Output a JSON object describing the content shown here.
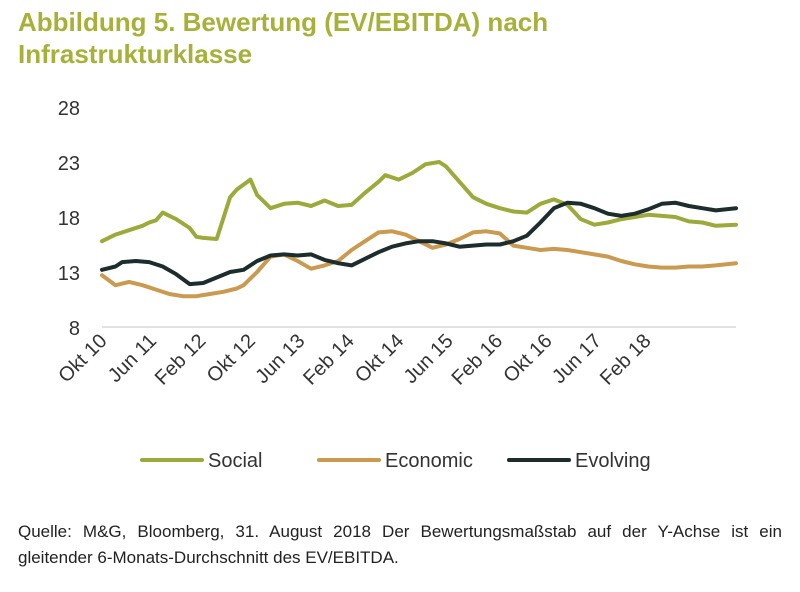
{
  "figure": {
    "title_line1": "Abbildung 5. Bewertung (EV/EBITDA) nach",
    "title_line2": "Infrastrukturklasse",
    "source_text": "Quelle: M&G, Bloomberg, 31. August 2018 Der Bewertungsmaßstab auf der Y-Achse ist ein gleitender 6-Monats-Durchschnitt des EV/EBITDA."
  },
  "chart_data": {
    "type": "line",
    "title": "Abbildung 5. Bewertung (EV/EBITDA) nach Infrastrukturklasse",
    "xlabel": "",
    "ylabel": "",
    "ylim": [
      8,
      28
    ],
    "yticks": [
      28,
      23,
      18,
      13,
      8
    ],
    "x_tick_labels": [
      "Okt 10",
      "Jun 11",
      "Feb 12",
      "Okt 12",
      "Jun 13",
      "Feb 14",
      "Okt 14",
      "Jun 15",
      "Feb 16",
      "Okt 16",
      "Jun 17",
      "Feb 18"
    ],
    "x_range": [
      "2010-10",
      "2018-08"
    ],
    "legend_position": "bottom",
    "grid": false,
    "series": [
      {
        "name": "Social",
        "color": "#9ca93b",
        "points": [
          [
            "2010-10",
            15.8
          ],
          [
            "2010-12",
            16.4
          ],
          [
            "2011-02",
            16.8
          ],
          [
            "2011-04",
            17.2
          ],
          [
            "2011-05",
            17.5
          ],
          [
            "2011-06",
            17.7
          ],
          [
            "2011-07",
            18.4
          ],
          [
            "2011-09",
            17.8
          ],
          [
            "2011-11",
            17.0
          ],
          [
            "2011-12",
            16.2
          ],
          [
            "2012-01",
            16.1
          ],
          [
            "2012-03",
            16.0
          ],
          [
            "2012-05",
            19.8
          ],
          [
            "2012-06",
            20.5
          ],
          [
            "2012-08",
            21.4
          ],
          [
            "2012-09",
            20.0
          ],
          [
            "2012-11",
            18.8
          ],
          [
            "2013-01",
            19.2
          ],
          [
            "2013-03",
            19.3
          ],
          [
            "2013-05",
            19.0
          ],
          [
            "2013-07",
            19.5
          ],
          [
            "2013-09",
            19.0
          ],
          [
            "2013-11",
            19.1
          ],
          [
            "2014-01",
            20.2
          ],
          [
            "2014-03",
            21.2
          ],
          [
            "2014-04",
            21.8
          ],
          [
            "2014-06",
            21.4
          ],
          [
            "2014-08",
            22.0
          ],
          [
            "2014-10",
            22.8
          ],
          [
            "2014-12",
            23.0
          ],
          [
            "2015-01",
            22.6
          ],
          [
            "2015-03",
            21.2
          ],
          [
            "2015-05",
            19.8
          ],
          [
            "2015-07",
            19.2
          ],
          [
            "2015-09",
            18.8
          ],
          [
            "2015-11",
            18.5
          ],
          [
            "2016-01",
            18.4
          ],
          [
            "2016-03",
            19.2
          ],
          [
            "2016-05",
            19.6
          ],
          [
            "2016-07",
            19.1
          ],
          [
            "2016-09",
            17.8
          ],
          [
            "2016-11",
            17.3
          ],
          [
            "2017-01",
            17.5
          ],
          [
            "2017-03",
            17.8
          ],
          [
            "2017-05",
            18.0
          ],
          [
            "2017-07",
            18.2
          ],
          [
            "2017-09",
            18.1
          ],
          [
            "2017-11",
            18.0
          ],
          [
            "2018-01",
            17.6
          ],
          [
            "2018-03",
            17.5
          ],
          [
            "2018-05",
            17.2
          ],
          [
            "2018-08",
            17.3
          ]
        ]
      },
      {
        "name": "Economic",
        "color": "#c99a4f",
        "points": [
          [
            "2010-10",
            12.7
          ],
          [
            "2010-12",
            11.8
          ],
          [
            "2011-02",
            12.1
          ],
          [
            "2011-04",
            11.8
          ],
          [
            "2011-06",
            11.4
          ],
          [
            "2011-08",
            11.0
          ],
          [
            "2011-10",
            10.8
          ],
          [
            "2011-12",
            10.8
          ],
          [
            "2012-02",
            11.0
          ],
          [
            "2012-04",
            11.2
          ],
          [
            "2012-06",
            11.5
          ],
          [
            "2012-07",
            11.8
          ],
          [
            "2012-09",
            13.0
          ],
          [
            "2012-11",
            14.4
          ],
          [
            "2013-01",
            14.6
          ],
          [
            "2013-03",
            14.0
          ],
          [
            "2013-05",
            13.3
          ],
          [
            "2013-07",
            13.6
          ],
          [
            "2013-09",
            14.0
          ],
          [
            "2013-11",
            15.0
          ],
          [
            "2014-01",
            15.8
          ],
          [
            "2014-03",
            16.6
          ],
          [
            "2014-05",
            16.7
          ],
          [
            "2014-07",
            16.4
          ],
          [
            "2014-09",
            15.8
          ],
          [
            "2014-11",
            15.2
          ],
          [
            "2015-01",
            15.5
          ],
          [
            "2015-03",
            16.0
          ],
          [
            "2015-05",
            16.6
          ],
          [
            "2015-07",
            16.7
          ],
          [
            "2015-09",
            16.5
          ],
          [
            "2015-11",
            15.4
          ],
          [
            "2016-01",
            15.2
          ],
          [
            "2016-03",
            15.0
          ],
          [
            "2016-05",
            15.1
          ],
          [
            "2016-07",
            15.0
          ],
          [
            "2016-09",
            14.8
          ],
          [
            "2016-11",
            14.6
          ],
          [
            "2017-01",
            14.4
          ],
          [
            "2017-03",
            14.0
          ],
          [
            "2017-05",
            13.7
          ],
          [
            "2017-07",
            13.5
          ],
          [
            "2017-09",
            13.4
          ],
          [
            "2017-11",
            13.4
          ],
          [
            "2018-01",
            13.5
          ],
          [
            "2018-03",
            13.5
          ],
          [
            "2018-05",
            13.6
          ],
          [
            "2018-08",
            13.8
          ]
        ]
      },
      {
        "name": "Evolving",
        "color": "#1d2c2c",
        "points": [
          [
            "2010-10",
            13.2
          ],
          [
            "2010-12",
            13.5
          ],
          [
            "2011-01",
            13.9
          ],
          [
            "2011-03",
            14.0
          ],
          [
            "2011-05",
            13.9
          ],
          [
            "2011-07",
            13.5
          ],
          [
            "2011-09",
            12.8
          ],
          [
            "2011-11",
            11.9
          ],
          [
            "2012-01",
            12.0
          ],
          [
            "2012-03",
            12.5
          ],
          [
            "2012-05",
            13.0
          ],
          [
            "2012-07",
            13.2
          ],
          [
            "2012-09",
            14.0
          ],
          [
            "2012-11",
            14.5
          ],
          [
            "2013-01",
            14.6
          ],
          [
            "2013-03",
            14.5
          ],
          [
            "2013-05",
            14.6
          ],
          [
            "2013-07",
            14.1
          ],
          [
            "2013-09",
            13.8
          ],
          [
            "2013-11",
            13.6
          ],
          [
            "2014-01",
            14.2
          ],
          [
            "2014-03",
            14.8
          ],
          [
            "2014-05",
            15.3
          ],
          [
            "2014-07",
            15.6
          ],
          [
            "2014-09",
            15.8
          ],
          [
            "2014-11",
            15.8
          ],
          [
            "2015-01",
            15.6
          ],
          [
            "2015-03",
            15.3
          ],
          [
            "2015-05",
            15.4
          ],
          [
            "2015-07",
            15.5
          ],
          [
            "2015-09",
            15.5
          ],
          [
            "2015-11",
            15.8
          ],
          [
            "2016-01",
            16.3
          ],
          [
            "2016-03",
            17.5
          ],
          [
            "2016-05",
            18.8
          ],
          [
            "2016-07",
            19.3
          ],
          [
            "2016-09",
            19.2
          ],
          [
            "2016-11",
            18.8
          ],
          [
            "2017-01",
            18.3
          ],
          [
            "2017-03",
            18.1
          ],
          [
            "2017-05",
            18.3
          ],
          [
            "2017-07",
            18.7
          ],
          [
            "2017-09",
            19.2
          ],
          [
            "2017-11",
            19.3
          ],
          [
            "2018-01",
            19.0
          ],
          [
            "2018-03",
            18.8
          ],
          [
            "2018-05",
            18.6
          ],
          [
            "2018-08",
            18.8
          ]
        ]
      }
    ]
  }
}
